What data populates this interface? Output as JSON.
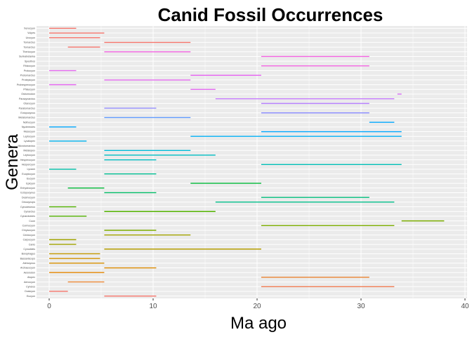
{
  "chart_data": {
    "type": "range-bar",
    "title": "Canid Fossil Occurrences",
    "xlabel": "Ma ago",
    "ylabel": "Genera",
    "xlim": [
      0,
      40
    ],
    "xticks": [
      0,
      10,
      20,
      30,
      40
    ],
    "grid": true,
    "legend": "none",
    "panel_background": "#ebebeb",
    "grid_color": "#ffffff",
    "rows": [
      {
        "genus": "Xenocyon",
        "start": 0,
        "end": 2.6,
        "color": "#F8766D"
      },
      {
        "genus": "Vulpes",
        "start": 0,
        "end": 5.3,
        "color": "#F8766D"
      },
      {
        "genus": "Urocyon",
        "start": 0,
        "end": 4.9,
        "color": "#F8766D"
      },
      {
        "genus": "Tomarctus",
        "start": 5.3,
        "end": 13.6,
        "color": "#F8766D"
      },
      {
        "genus": "Tomarctus",
        "start": 1.8,
        "end": 4.9,
        "color": "#F8766D"
      },
      {
        "genus": "Theriocyon",
        "start": 5.3,
        "end": 13.6,
        "color": "#F564E3"
      },
      {
        "genus": "Sunkahetanka",
        "start": 20.4,
        "end": 30.8,
        "color": "#F564E3"
      },
      {
        "genus": "Speothos",
        "start": 0,
        "end": 0,
        "color": "#F564E3"
      },
      {
        "genus": "Rhizocyon",
        "start": 20.4,
        "end": 30.8,
        "color": "#F564E3"
      },
      {
        "genus": "Protocyon",
        "start": 0,
        "end": 2.6,
        "color": "#E76BF3"
      },
      {
        "genus": "Protomarctus",
        "start": 13.6,
        "end": 20.4,
        "color": "#E76BF3"
      },
      {
        "genus": "Protepicyon",
        "start": 5.3,
        "end": 13.6,
        "color": "#E76BF3"
      },
      {
        "genus": "Prohesperocyon",
        "start": 0,
        "end": 2.6,
        "color": "#E76BF3"
      },
      {
        "genus": "Phlaocyon",
        "start": 13.6,
        "end": 16.0,
        "color": "#E76BF3"
      },
      {
        "genus": "Osbornodon",
        "start": 33.5,
        "end": 33.9,
        "color": "#DB72FB"
      },
      {
        "genus": "Paracynarctus",
        "start": 16.0,
        "end": 33.2,
        "color": "#C77CFF"
      },
      {
        "genus": "Otarocyon",
        "start": 20.4,
        "end": 30.8,
        "color": "#B983FF"
      },
      {
        "genus": "Paratomarctus",
        "start": 5.3,
        "end": 10.3,
        "color": "#9590FF"
      },
      {
        "genus": "Ectopocynus",
        "start": 20.4,
        "end": 30.8,
        "color": "#8F91FF"
      },
      {
        "genus": "Metatomarctus",
        "start": 5.3,
        "end": 13.6,
        "color": "#619CFF"
      },
      {
        "genus": "Nothocyon",
        "start": 30.8,
        "end": 33.2,
        "color": "#00A9FF"
      },
      {
        "genus": "Nyctereutes",
        "start": 0,
        "end": 2.6,
        "color": "#00A9FF"
      },
      {
        "genus": "Mesocyon",
        "start": 20.4,
        "end": 33.9,
        "color": "#00A9FF"
      },
      {
        "genus": "Leptocyon",
        "start": 13.6,
        "end": 33.9,
        "color": "#00B0F6"
      },
      {
        "genus": "Lycalopex",
        "start": 0,
        "end": 3.6,
        "color": "#00B4EF"
      },
      {
        "genus": "Microtomarctus",
        "start": 0,
        "end": 0,
        "color": "#00B8E7"
      },
      {
        "genus": "Metalopex",
        "start": 5.3,
        "end": 13.6,
        "color": "#00BCD8"
      },
      {
        "genus": "Leptocyon",
        "start": 5.3,
        "end": 16.0,
        "color": "#00BFC4"
      },
      {
        "genus": "Hesperocyon",
        "start": 5.3,
        "end": 10.3,
        "color": "#00BFC4"
      },
      {
        "genus": "Hespercyon",
        "start": 20.4,
        "end": 33.9,
        "color": "#00C0B8"
      },
      {
        "genus": "Lycaon",
        "start": 0,
        "end": 2.6,
        "color": "#00C1A9"
      },
      {
        "genus": "Euoplocyon",
        "start": 5.3,
        "end": 10.3,
        "color": "#00C094"
      },
      {
        "genus": "Eucyon",
        "start": 0,
        "end": 0,
        "color": "#00BE7D"
      },
      {
        "genus": "Epicyon",
        "start": 13.6,
        "end": 20.4,
        "color": "#00BA38"
      },
      {
        "genus": "Enhydrocyon",
        "start": 1.8,
        "end": 5.3,
        "color": "#00BA38"
      },
      {
        "genus": "Ectopocynus",
        "start": 5.3,
        "end": 10.3,
        "color": "#00BE67"
      },
      {
        "genus": "Desmocyon",
        "start": 20.4,
        "end": 30.8,
        "color": "#00BF7D"
      },
      {
        "genus": "Dinocynops",
        "start": 16.0,
        "end": 33.2,
        "color": "#00C08B"
      },
      {
        "genus": "Cynodesmus",
        "start": 0,
        "end": 2.6,
        "color": "#53B400"
      },
      {
        "genus": "Cynarctus",
        "start": 5.3,
        "end": 16.0,
        "color": "#53B400"
      },
      {
        "genus": "Cynarctoides",
        "start": 0,
        "end": 3.6,
        "color": "#53B400"
      },
      {
        "genus": "Cuon",
        "start": 33.9,
        "end": 38.0,
        "color": "#7CAE00"
      },
      {
        "genus": "Cormocyon",
        "start": 20.4,
        "end": 33.2,
        "color": "#7CAE00"
      },
      {
        "genus": "Chrysocyon",
        "start": 5.3,
        "end": 10.3,
        "color": "#7CAE00"
      },
      {
        "genus": "Cerdocyon",
        "start": 5.3,
        "end": 13.6,
        "color": "#A3A500"
      },
      {
        "genus": "Carpocyon",
        "start": 0,
        "end": 2.6,
        "color": "#A3A500"
      },
      {
        "genus": "Canis",
        "start": 0,
        "end": 2.6,
        "color": "#A3A500"
      },
      {
        "genus": "Cynodictis",
        "start": 5.3,
        "end": 20.4,
        "color": "#B79F00"
      },
      {
        "genus": "Borophagus",
        "start": 0,
        "end": 4.9,
        "color": "#C49A00"
      },
      {
        "genus": "Bassariscops",
        "start": 0,
        "end": 4.9,
        "color": "#D39200"
      },
      {
        "genus": "Atelocynus",
        "start": 0,
        "end": 5.3,
        "color": "#D89000"
      },
      {
        "genus": "Archaeocyon",
        "start": 5.3,
        "end": 10.3,
        "color": "#DE8C00"
      },
      {
        "genus": "Aelurodon",
        "start": 0,
        "end": 5.3,
        "color": "#E58700"
      },
      {
        "genus": "Alopex",
        "start": 20.4,
        "end": 30.8,
        "color": "#EA8331"
      },
      {
        "genus": "Aenocyon",
        "start": 1.8,
        "end": 5.3,
        "color": "#F08C3A"
      },
      {
        "genus": "Cynelos",
        "start": 20.4,
        "end": 33.2,
        "color": "#F27D53"
      },
      {
        "genus": "Dusicyon",
        "start": 0,
        "end": 1.8,
        "color": "#F8766D"
      },
      {
        "genus": "Eucyon",
        "start": 5.3,
        "end": 10.3,
        "color": "#F8766D"
      }
    ]
  }
}
